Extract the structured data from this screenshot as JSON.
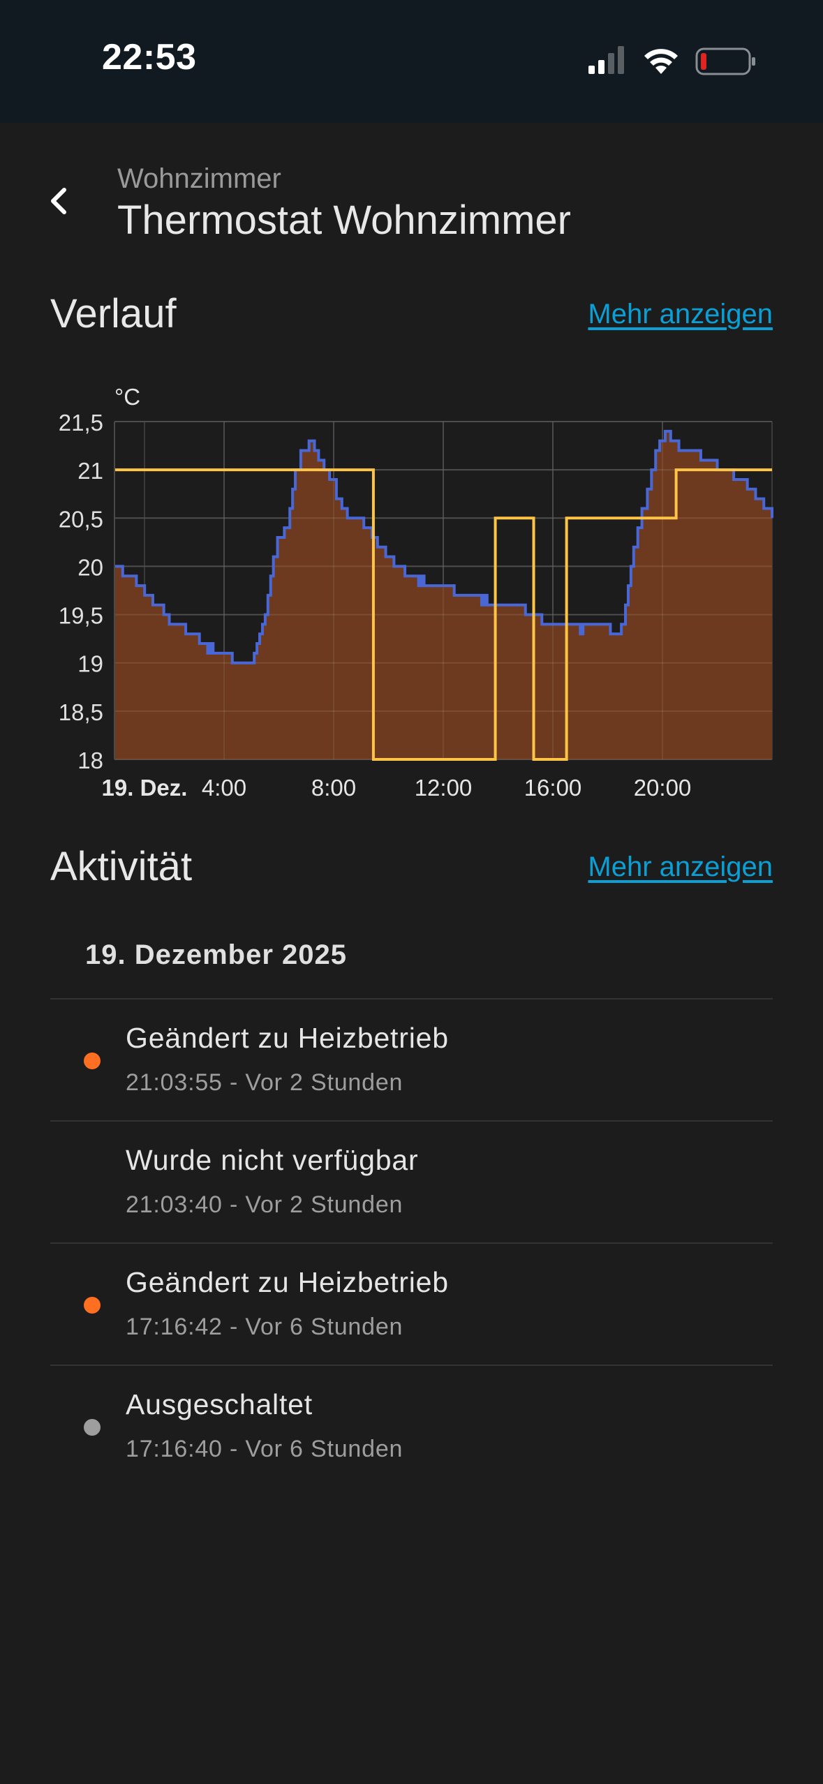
{
  "status_bar": {
    "time": "22:53",
    "icons": [
      "cellular-signal-icon",
      "wifi-icon",
      "battery-low-icon"
    ],
    "battery_color": "#e02424"
  },
  "header": {
    "area": "Wohnzimmer",
    "title": "Thermostat Wohnzimmer",
    "back_icon": "chevron-left-icon"
  },
  "history": {
    "title": "Verlauf",
    "more_label": "Mehr anzeigen"
  },
  "activity": {
    "title": "Aktivität",
    "more_label": "Mehr anzeigen",
    "date": "19. Dezember 2025",
    "items": [
      {
        "title": "Geändert zu Heizbetrieb",
        "time": "21:03:55 - Vor 2 Stunden",
        "dot": "#ff6f22"
      },
      {
        "title": "Wurde nicht verfügbar",
        "time": "21:03:40 - Vor 2 Stunden",
        "dot": ""
      },
      {
        "title": "Geändert zu Heizbetrieb",
        "time": "17:16:42 - Vor 6 Stunden",
        "dot": "#ff6f22"
      },
      {
        "title": "Ausgeschaltet",
        "time": "17:16:40 - Vor 6 Stunden",
        "dot": "#9e9e9e"
      }
    ]
  },
  "colors": {
    "accent_link": "#0aa0d5",
    "current_temp_line": "#4a67d6",
    "heating_fill": "#6d3a20",
    "target_temp_line": "#fec445"
  },
  "chart_data": {
    "type": "line",
    "unit": "°C",
    "ylim": [
      18,
      21.5
    ],
    "yticks": [
      "21,5",
      "21",
      "20,5",
      "20",
      "19,5",
      "19",
      "18,5",
      "18"
    ],
    "xlim": [
      0,
      24
    ],
    "xticks": [
      {
        "x": 0,
        "label": "19. Dez.",
        "bold": true
      },
      {
        "x": 4,
        "label": "4:00"
      },
      {
        "x": 8,
        "label": "8:00"
      },
      {
        "x": 12,
        "label": "12:00"
      },
      {
        "x": 16,
        "label": "16:00"
      },
      {
        "x": 20,
        "label": "20:00"
      }
    ],
    "grid": true,
    "series": [
      {
        "style": "step",
        "color": "#4a67d6",
        "fill": "#6d3a20",
        "points": [
          [
            0.0,
            20.0
          ],
          [
            0.3,
            19.9
          ],
          [
            0.8,
            19.8
          ],
          [
            1.1,
            19.7
          ],
          [
            1.4,
            19.6
          ],
          [
            1.8,
            19.5
          ],
          [
            2.0,
            19.4
          ],
          [
            2.6,
            19.3
          ],
          [
            3.1,
            19.2
          ],
          [
            3.4,
            19.1
          ],
          [
            3.5,
            19.2
          ],
          [
            3.6,
            19.1
          ],
          [
            4.3,
            19.0
          ],
          [
            5.1,
            19.1
          ],
          [
            5.2,
            19.2
          ],
          [
            5.3,
            19.3
          ],
          [
            5.4,
            19.4
          ],
          [
            5.5,
            19.5
          ],
          [
            5.6,
            19.7
          ],
          [
            5.7,
            19.9
          ],
          [
            5.8,
            20.1
          ],
          [
            5.95,
            20.3
          ],
          [
            6.2,
            20.4
          ],
          [
            6.4,
            20.6
          ],
          [
            6.5,
            20.8
          ],
          [
            6.6,
            21.0
          ],
          [
            6.8,
            21.2
          ],
          [
            7.1,
            21.3
          ],
          [
            7.3,
            21.2
          ],
          [
            7.45,
            21.1
          ],
          [
            7.65,
            21.0
          ],
          [
            7.85,
            20.9
          ],
          [
            8.1,
            20.7
          ],
          [
            8.3,
            20.6
          ],
          [
            8.5,
            20.5
          ],
          [
            9.1,
            20.4
          ],
          [
            9.4,
            20.3
          ],
          [
            9.6,
            20.2
          ],
          [
            9.9,
            20.1
          ],
          [
            10.2,
            20.0
          ],
          [
            10.6,
            19.9
          ],
          [
            11.1,
            19.8
          ],
          [
            11.2,
            19.9
          ],
          [
            11.3,
            19.8
          ],
          [
            12.4,
            19.7
          ],
          [
            13.4,
            19.6
          ],
          [
            13.5,
            19.7
          ],
          [
            13.6,
            19.6
          ],
          [
            15.0,
            19.5
          ],
          [
            15.6,
            19.4
          ],
          [
            17.0,
            19.3
          ],
          [
            17.1,
            19.4
          ],
          [
            17.3,
            19.4
          ],
          [
            18.1,
            19.3
          ],
          [
            18.5,
            19.4
          ],
          [
            18.65,
            19.6
          ],
          [
            18.75,
            19.8
          ],
          [
            18.85,
            20.0
          ],
          [
            18.95,
            20.2
          ],
          [
            19.1,
            20.4
          ],
          [
            19.25,
            20.6
          ],
          [
            19.45,
            20.8
          ],
          [
            19.6,
            21.0
          ],
          [
            19.75,
            21.2
          ],
          [
            19.9,
            21.3
          ],
          [
            20.1,
            21.4
          ],
          [
            20.3,
            21.3
          ],
          [
            20.6,
            21.2
          ],
          [
            21.4,
            21.1
          ],
          [
            22.0,
            21.0
          ],
          [
            22.6,
            20.9
          ],
          [
            23.1,
            20.8
          ],
          [
            23.4,
            20.7
          ],
          [
            23.7,
            20.6
          ],
          [
            24.0,
            20.5
          ]
        ]
      },
      {
        "style": "step",
        "color": "#fec445",
        "fill": "",
        "points": [
          [
            0.0,
            21.0
          ],
          [
            9.45,
            18.0
          ],
          [
            13.9,
            20.5
          ],
          [
            15.3,
            18.0
          ],
          [
            16.5,
            20.5
          ],
          [
            20.5,
            21.0
          ],
          [
            24.0,
            21.0
          ]
        ]
      }
    ]
  }
}
